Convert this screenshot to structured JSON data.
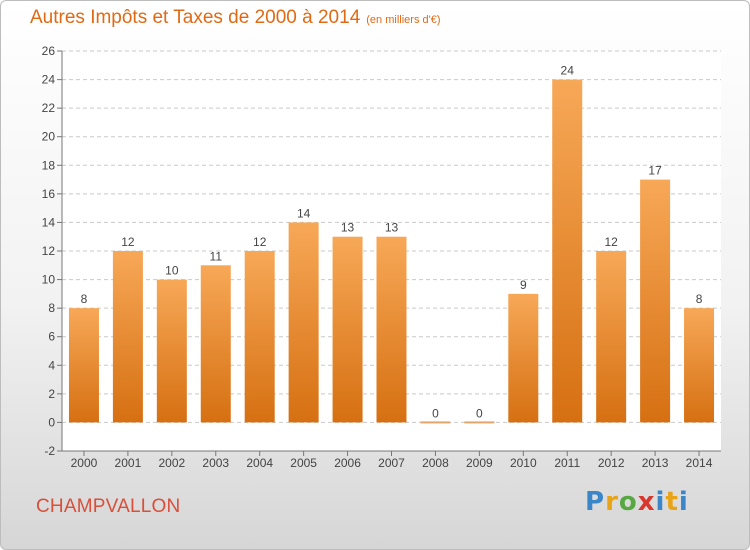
{
  "title": "Autres Impôts et Taxes de 2000 à 2014",
  "subtitle": "(en milliers d'€)",
  "town": "CHAMPVALLON",
  "logo": [
    "P",
    "r",
    "o",
    "x",
    "i",
    "t",
    "i"
  ],
  "colors": {
    "bar_top": "#f7a857",
    "bar_bottom": "#d67012",
    "title": "#e06a14",
    "town": "#d94f3a"
  },
  "chart_data": {
    "type": "bar",
    "categories": [
      "2000",
      "2001",
      "2002",
      "2003",
      "2004",
      "2005",
      "2006",
      "2007",
      "2008",
      "2009",
      "2010",
      "2011",
      "2012",
      "2013",
      "2014"
    ],
    "values": [
      8,
      12,
      10,
      11,
      12,
      14,
      13,
      13,
      0,
      0,
      9,
      24,
      12,
      17,
      8
    ],
    "ylim": [
      -2,
      26
    ],
    "yticks": [
      -2,
      0,
      2,
      4,
      6,
      8,
      10,
      12,
      14,
      16,
      18,
      20,
      22,
      24,
      26
    ],
    "grid": true
  }
}
